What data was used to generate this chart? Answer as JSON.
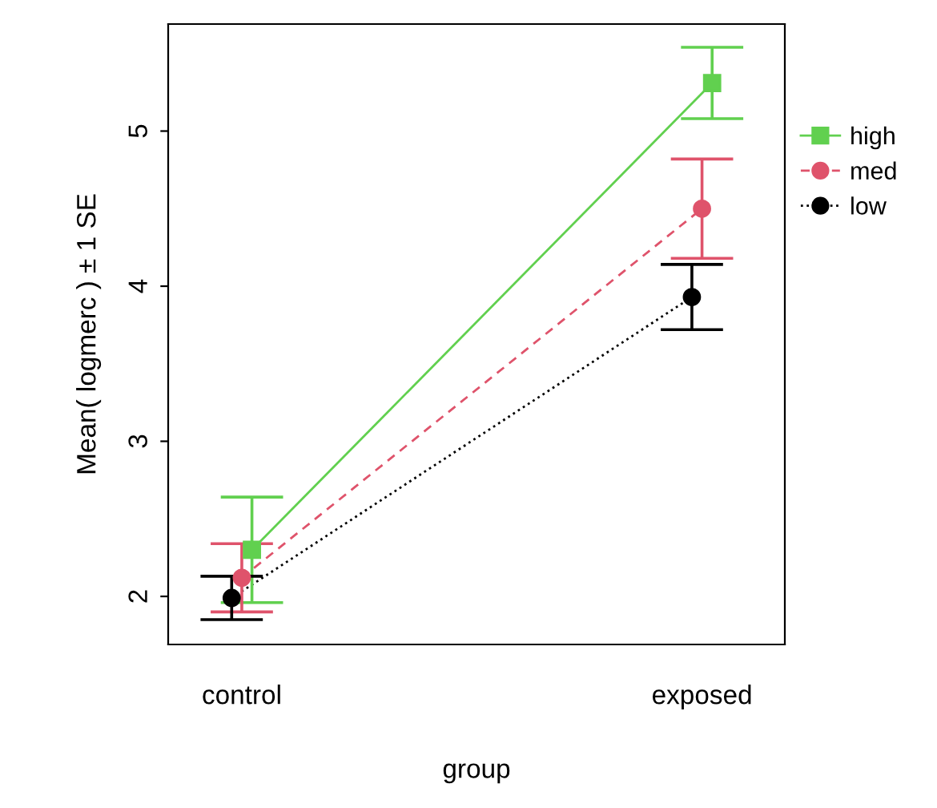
{
  "chart_data": {
    "type": "line",
    "xlabel": "group",
    "ylabel": "Mean( logmerc ) ± 1 SE",
    "categories": [
      "control",
      "exposed"
    ],
    "series": [
      {
        "name": "high",
        "color": "#61d04f",
        "values": [
          2.3,
          5.31
        ],
        "errors": [
          0.34,
          0.23
        ],
        "marker": "square",
        "line_style": "solid"
      },
      {
        "name": "med",
        "color": "#df536b",
        "values": [
          2.12,
          4.5
        ],
        "errors": [
          0.22,
          0.32
        ],
        "marker": "circle",
        "line_style": "dashed"
      },
      {
        "name": "low",
        "color": "#000000",
        "values": [
          1.99,
          3.93
        ],
        "errors": [
          0.14,
          0.21
        ],
        "marker": "circle",
        "line_style": "dotted"
      }
    ],
    "ylim": [
      1.69,
      5.69
    ],
    "yticks": [
      2,
      3,
      4,
      5
    ],
    "grid": false,
    "legend": "right"
  }
}
